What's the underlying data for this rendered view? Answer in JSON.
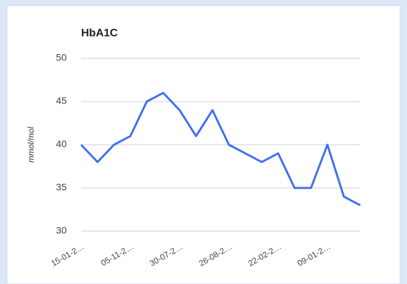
{
  "chart_data": {
    "type": "line",
    "title": "HbA1C",
    "y_label": "mmol/mol",
    "categories": [
      "15-01-2…",
      null,
      null,
      "05-11-2…",
      null,
      null,
      "30-07-2…",
      null,
      null,
      "26-08-2…",
      null,
      null,
      "22-02-2…",
      null,
      null,
      "09-01-2…",
      null,
      null
    ],
    "series": [
      {
        "name": "HbA1C",
        "color": "#3f6ff0",
        "values": [
          40,
          38,
          40,
          41,
          45,
          46,
          44,
          41,
          44,
          40,
          39,
          38,
          39,
          35,
          35,
          40,
          34,
          33
        ]
      }
    ],
    "ylim": [
      30,
      50
    ],
    "yticks": [
      30,
      35,
      40,
      45,
      50
    ],
    "grid": true
  }
}
